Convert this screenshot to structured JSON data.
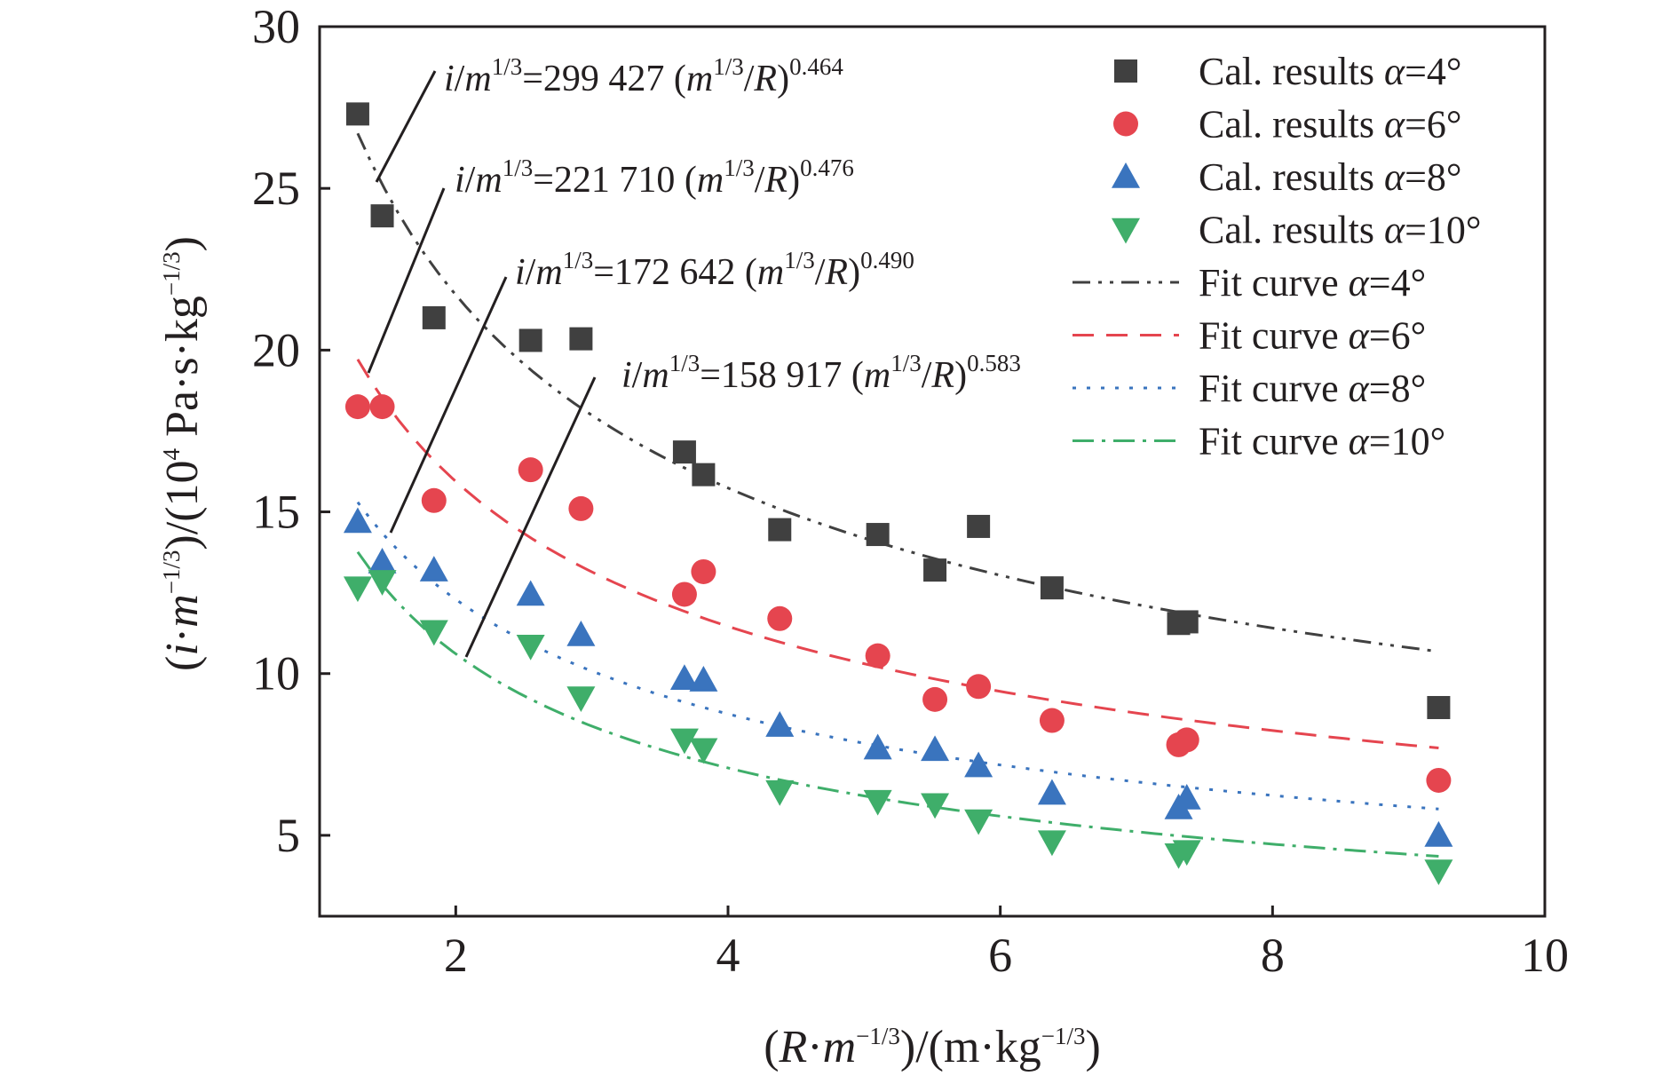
{
  "chart_data": {
    "type": "scatter",
    "xlabel": "(R·m−1/3)/(m·kg−1/3)",
    "ylabel": "(i·m−1/3)/(104 Pa·s·kg−1/3)",
    "xlim": [
      1,
      10
    ],
    "ylim": [
      2.5,
      30
    ],
    "x_ticks": [
      2,
      4,
      6,
      8,
      10
    ],
    "y_ticks": [
      5,
      10,
      15,
      20,
      25,
      30
    ],
    "grid": false,
    "legend_position": "top-right",
    "series": [
      {
        "name": "Cal. results α=4°",
        "marker": "square",
        "color": "#404040",
        "x": [
          1.28,
          1.46,
          1.84,
          2.55,
          2.92,
          3.68,
          3.82,
          4.38,
          5.1,
          5.52,
          5.84,
          6.38,
          7.31,
          7.37,
          9.22
        ],
        "y": [
          27.3,
          24.15,
          21.0,
          20.3,
          20.35,
          16.85,
          16.15,
          14.45,
          14.3,
          13.2,
          14.55,
          12.65,
          11.55,
          11.6,
          8.95
        ]
      },
      {
        "name": "Cal. results α=6°",
        "marker": "circle",
        "color": "#e5454f",
        "x": [
          1.28,
          1.46,
          1.84,
          2.55,
          2.92,
          3.68,
          3.82,
          4.38,
          5.1,
          5.52,
          5.84,
          6.38,
          7.31,
          7.37,
          9.22
        ],
        "y": [
          18.25,
          18.25,
          15.35,
          16.3,
          15.1,
          12.45,
          13.15,
          11.7,
          10.55,
          9.2,
          9.6,
          8.55,
          7.8,
          7.95,
          6.7
        ]
      },
      {
        "name": "Cal. results α=8°",
        "marker": "triangle-up",
        "color": "#3a74be",
        "x": [
          1.28,
          1.46,
          1.84,
          2.55,
          2.92,
          3.68,
          3.82,
          4.38,
          5.1,
          5.52,
          5.84,
          6.38,
          7.31,
          7.37,
          9.22
        ],
        "y": [
          14.7,
          13.45,
          13.2,
          12.45,
          11.2,
          9.85,
          9.8,
          8.4,
          7.7,
          7.65,
          7.15,
          6.3,
          5.85,
          6.15,
          5.0
        ]
      },
      {
        "name": "Cal. results α=10°",
        "marker": "triangle-down",
        "color": "#3fae6a",
        "x": [
          1.28,
          1.46,
          1.84,
          2.55,
          2.92,
          3.68,
          3.82,
          4.38,
          5.1,
          5.52,
          5.84,
          6.38,
          7.31,
          7.37,
          9.22
        ],
        "y": [
          12.65,
          12.85,
          11.3,
          10.85,
          9.25,
          7.95,
          7.65,
          6.35,
          6.05,
          5.95,
          5.45,
          4.8,
          4.4,
          4.5,
          3.9
        ]
      }
    ],
    "fits": [
      {
        "name": "Fit curve α=4°",
        "style": "dash-dot-dot",
        "color": "#404040",
        "coefficient": 299427,
        "exponent": 0.464,
        "x_range": [
          1.28,
          9.22
        ],
        "equation_parts": [
          "i/m",
          "1/3",
          "=299 427 (m",
          "1/3",
          "/R)",
          "0.464"
        ]
      },
      {
        "name": "Fit curve α=6°",
        "style": "dashed",
        "color": "#e5454f",
        "coefficient": 221710,
        "exponent": 0.476,
        "x_range": [
          1.28,
          9.22
        ],
        "equation_parts": [
          "i/m",
          "1/3",
          "=221 710 (m",
          "1/3",
          "/R)",
          "0.476"
        ]
      },
      {
        "name": "Fit curve α=8°",
        "style": "dotted",
        "color": "#3a74be",
        "coefficient": 172642,
        "exponent": 0.49,
        "x_range": [
          1.28,
          9.22
        ],
        "equation_parts": [
          "i/m",
          "1/3",
          "=172 642 (m",
          "1/3",
          "/R)",
          "0.490"
        ]
      },
      {
        "name": "Fit curve α=10°",
        "style": "dash-dot",
        "color": "#3fae6a",
        "coefficient": 158917,
        "exponent": 0.583,
        "x_range": [
          1.28,
          9.22
        ],
        "equation_parts": [
          "i/m",
          "1/3",
          "=158 917 (m",
          "1/3",
          "/R)",
          "0.583"
        ]
      }
    ]
  }
}
